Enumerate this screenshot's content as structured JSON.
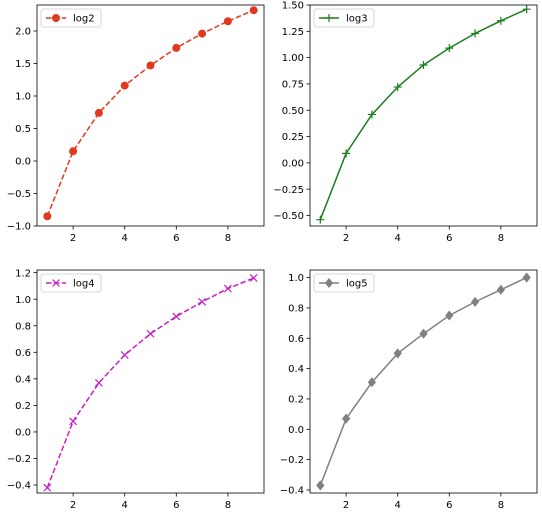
{
  "chart_data": [
    {
      "type": "line",
      "x": [
        1,
        2,
        3,
        4,
        5,
        6,
        7,
        8,
        9
      ],
      "xticks": [
        2,
        4,
        6,
        8
      ],
      "xlim": [
        0.6,
        9.4
      ],
      "ylim": [
        -1.0,
        2.4
      ],
      "yticks": [
        -1.0,
        -0.5,
        0.0,
        0.5,
        1.0,
        1.5,
        2.0
      ],
      "ytick_labels": [
        "−1.0",
        "−0.5",
        "0.0",
        "0.5",
        "1.0",
        "1.5",
        "2.0"
      ],
      "legend_position": "upper-left",
      "series": [
        {
          "name": "log2",
          "values": [
            -0.85,
            0.15,
            0.74,
            1.16,
            1.47,
            1.74,
            1.96,
            2.15,
            2.32
          ],
          "color": "#e03a1e",
          "linestyle": "dashed",
          "marker": "circle"
        }
      ]
    },
    {
      "type": "line",
      "x": [
        1,
        2,
        3,
        4,
        5,
        6,
        7,
        8,
        9
      ],
      "xticks": [
        2,
        4,
        6,
        8
      ],
      "xlim": [
        0.6,
        9.4
      ],
      "ylim": [
        -0.6,
        1.5
      ],
      "yticks": [
        -0.5,
        -0.25,
        0.0,
        0.25,
        0.5,
        0.75,
        1.0,
        1.25,
        1.5
      ],
      "ytick_labels": [
        "−0.50",
        "−0.25",
        "0.00",
        "0.25",
        "0.50",
        "0.75",
        "1.00",
        "1.25",
        "1.50"
      ],
      "legend_position": "upper-left",
      "series": [
        {
          "name": "log3",
          "values": [
            -0.54,
            0.09,
            0.46,
            0.72,
            0.93,
            1.09,
            1.23,
            1.35,
            1.46
          ],
          "color": "#1a7f1a",
          "linestyle": "solid",
          "marker": "plus"
        }
      ]
    },
    {
      "type": "line",
      "x": [
        1,
        2,
        3,
        4,
        5,
        6,
        7,
        8,
        9
      ],
      "xticks": [
        2,
        4,
        6,
        8
      ],
      "xlim": [
        0.6,
        9.4
      ],
      "ylim": [
        -0.46,
        1.22
      ],
      "yticks": [
        -0.4,
        -0.2,
        0.0,
        0.2,
        0.4,
        0.6,
        0.8,
        1.0,
        1.2
      ],
      "ytick_labels": [
        "−0.4",
        "−0.2",
        "0.0",
        "0.2",
        "0.4",
        "0.6",
        "0.8",
        "1.0",
        "1.2"
      ],
      "legend_position": "upper-left",
      "series": [
        {
          "name": "log4",
          "values": [
            -0.42,
            0.08,
            0.37,
            0.58,
            0.74,
            0.87,
            0.98,
            1.08,
            1.16
          ],
          "color": "#c81ec8",
          "linestyle": "dashed",
          "marker": "x"
        }
      ]
    },
    {
      "type": "line",
      "x": [
        1,
        2,
        3,
        4,
        5,
        6,
        7,
        8,
        9
      ],
      "xticks": [
        2,
        4,
        6,
        8
      ],
      "xlim": [
        0.6,
        9.4
      ],
      "ylim": [
        -0.42,
        1.05
      ],
      "yticks": [
        -0.4,
        -0.2,
        0.0,
        0.2,
        0.4,
        0.6,
        0.8,
        1.0
      ],
      "ytick_labels": [
        "−0.4",
        "−0.2",
        "0.0",
        "0.2",
        "0.4",
        "0.6",
        "0.8",
        "1.0"
      ],
      "legend_position": "upper-left",
      "series": [
        {
          "name": "log5",
          "values": [
            -0.37,
            0.07,
            0.31,
            0.5,
            0.63,
            0.75,
            0.84,
            0.92,
            1.0
          ],
          "color": "#808080",
          "linestyle": "solid",
          "marker": "diamond"
        }
      ]
    }
  ]
}
